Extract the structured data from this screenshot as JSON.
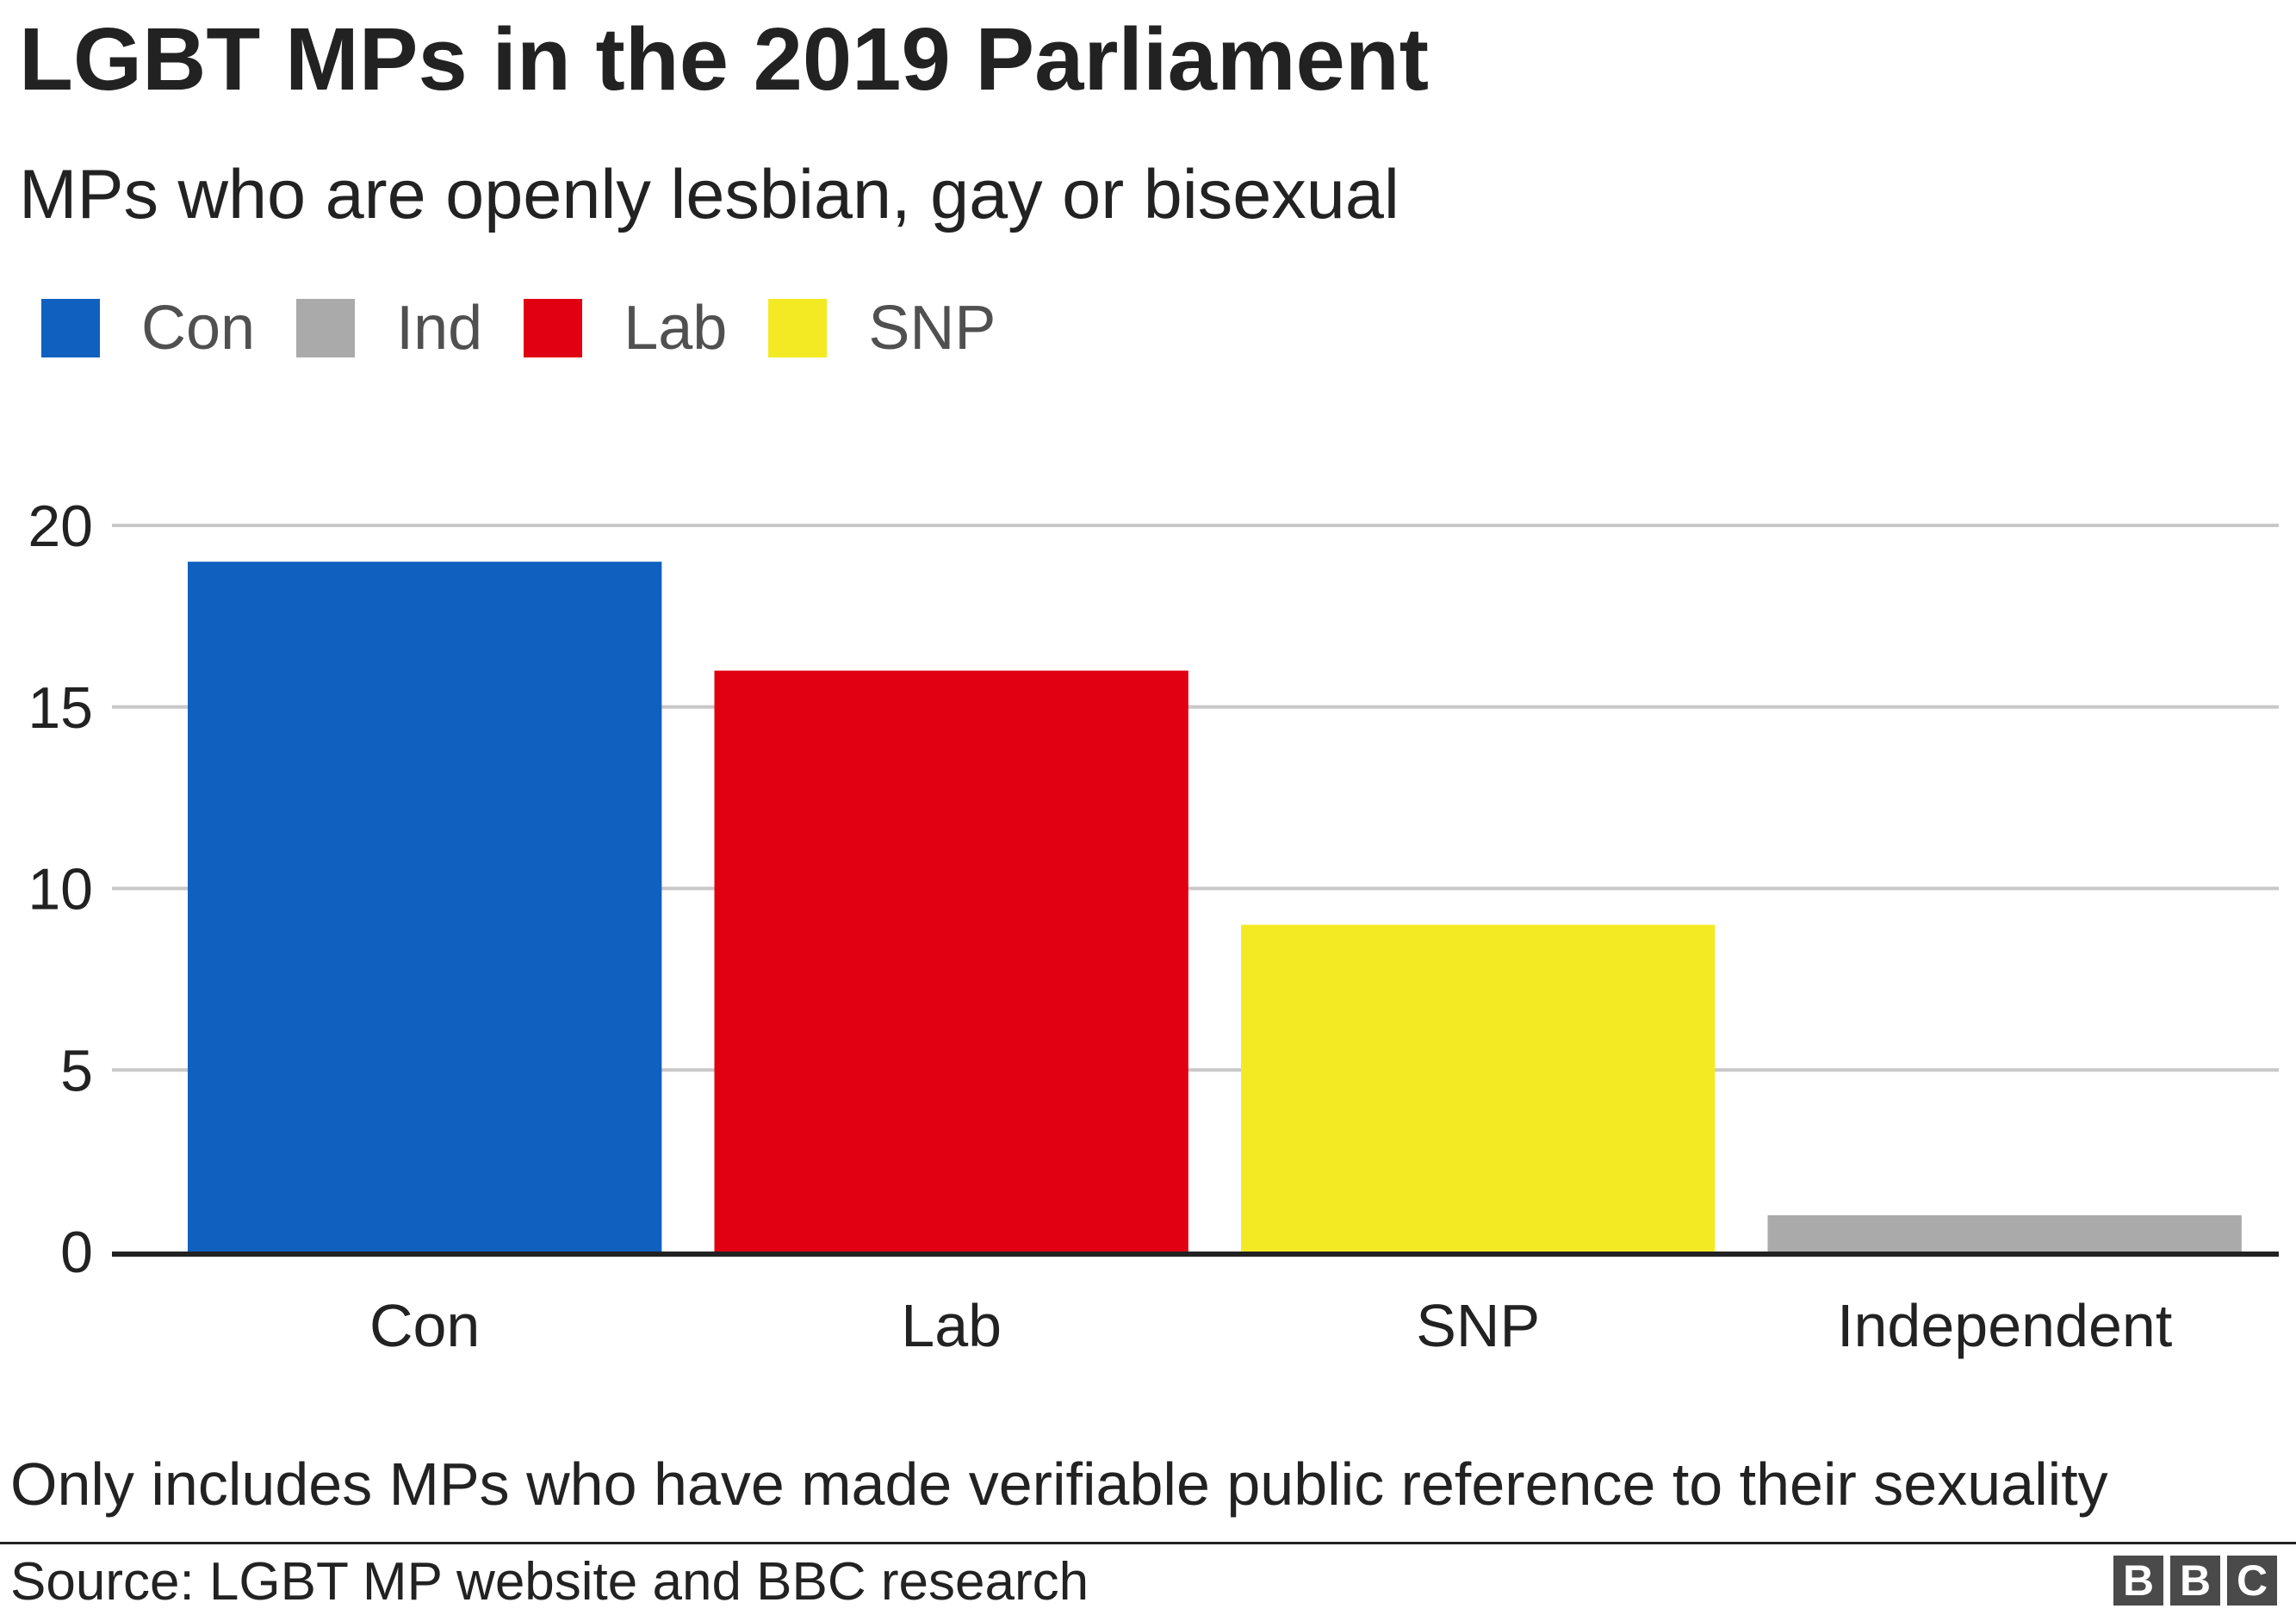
{
  "title": "LGBT MPs in the 2019 Parliament",
  "subtitle": "MPs who are openly lesbian, gay or bisexual",
  "legend": [
    {
      "label": "Con",
      "color": "#1060bf"
    },
    {
      "label": "Ind",
      "color": "#aaaaaa"
    },
    {
      "label": "Lab",
      "color": "#e10011"
    },
    {
      "label": "SNP",
      "color": "#f4ea24"
    }
  ],
  "footnote": "Only includes MPs who have made verifiable public reference to their sexuality",
  "source": "Source: LGBT MP website and BBC research",
  "logo": {
    "letters": [
      "B",
      "B",
      "C"
    ]
  },
  "chart_data": {
    "type": "bar",
    "title": "LGBT MPs in the 2019 Parliament",
    "subtitle": "MPs who are openly lesbian, gay or bisexual",
    "categories": [
      "Con",
      "Lab",
      "SNP",
      "Independent"
    ],
    "values": [
      19,
      16,
      9,
      1
    ],
    "colors": [
      "#1060bf",
      "#e10011",
      "#f4ea24",
      "#aaaaaa"
    ],
    "ylim": [
      0,
      20
    ],
    "yticks": [
      0,
      5,
      10,
      15,
      20
    ],
    "grid": true,
    "legend_position": "top-left",
    "xlabel": "",
    "ylabel": ""
  }
}
